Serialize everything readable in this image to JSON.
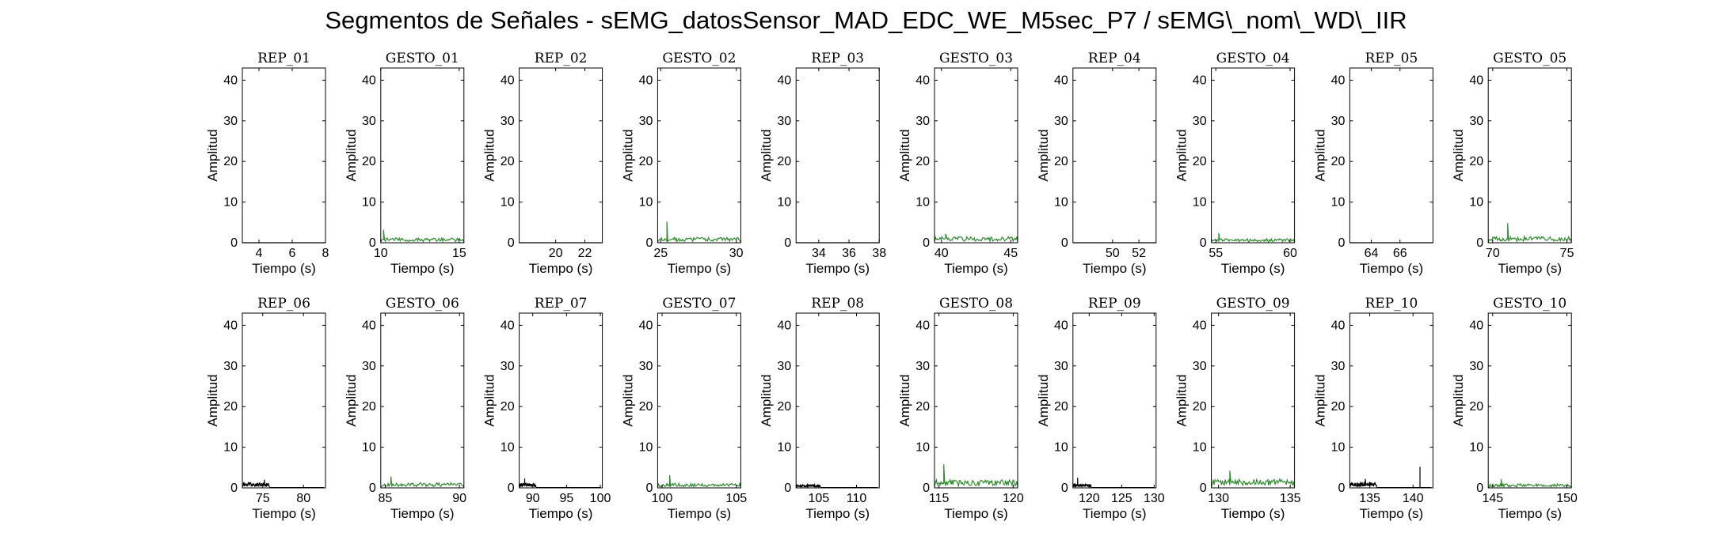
{
  "title": "Segmentos de Señales - sEMG_datosSensor_MAD_EDC_WE_M5sec_P7 / sEMG\\_nom\\_WD\\_IIR",
  "colors": {
    "rep": "#000000",
    "gesto": "#2e8b2e"
  },
  "chart_data": [
    {
      "type": "line",
      "title": "REP_01",
      "xlabel": "Tiempo (s)",
      "ylabel": "Amplitud",
      "xlim": [
        3,
        8
      ],
      "ylim": [
        0,
        43
      ],
      "xticks": [
        4,
        6,
        8
      ],
      "yticks": [
        0,
        10,
        20,
        30,
        40
      ],
      "series": [
        {
          "color": "#000000",
          "x": [
            3,
            8
          ],
          "y": [
            0,
            0
          ]
        }
      ]
    },
    {
      "type": "line",
      "title": "GESTO_01",
      "xlabel": "Tiempo (s)",
      "ylabel": "Amplitud",
      "xlim": [
        10,
        15.3
      ],
      "ylim": [
        0,
        43
      ],
      "xticks": [
        10,
        15
      ],
      "yticks": [
        0,
        10,
        20,
        30,
        40
      ],
      "series": [
        {
          "color": "#2e8b2e",
          "x": [
            10,
            15.3
          ],
          "amp": 1.2,
          "peak": [
            10.2,
            3.2
          ]
        }
      ]
    },
    {
      "type": "line",
      "title": "REP_02",
      "xlabel": "Tiempo (s)",
      "ylabel": "Amplitud",
      "xlim": [
        17.5,
        23.2
      ],
      "ylim": [
        0,
        43
      ],
      "xticks": [
        20,
        22
      ],
      "yticks": [
        0,
        10,
        20,
        30,
        40
      ],
      "series": [
        {
          "color": "#000000",
          "x": [
            17.5,
            23.2
          ],
          "y": [
            0,
            0
          ]
        }
      ]
    },
    {
      "type": "line",
      "title": "GESTO_02",
      "xlabel": "Tiempo (s)",
      "ylabel": "Amplitud",
      "xlim": [
        24.8,
        30.3
      ],
      "ylim": [
        0,
        43
      ],
      "xticks": [
        25,
        30
      ],
      "yticks": [
        0,
        10,
        20,
        30,
        40
      ],
      "series": [
        {
          "color": "#2e8b2e",
          "x": [
            24.8,
            30.3
          ],
          "amp": 1.3,
          "peak": [
            25.4,
            5.2
          ]
        }
      ]
    },
    {
      "type": "line",
      "title": "REP_03",
      "xlabel": "Tiempo (s)",
      "ylabel": "Amplitud",
      "xlim": [
        32.5,
        38
      ],
      "ylim": [
        0,
        43
      ],
      "xticks": [
        34,
        36,
        38
      ],
      "yticks": [
        0,
        10,
        20,
        30,
        40
      ],
      "series": [
        {
          "color": "#000000",
          "x": [
            32.5,
            38
          ],
          "y": [
            0,
            0
          ]
        }
      ]
    },
    {
      "type": "line",
      "title": "GESTO_03",
      "xlabel": "Tiempo (s)",
      "ylabel": "Amplitud",
      "xlim": [
        39.5,
        45.5
      ],
      "ylim": [
        0,
        43
      ],
      "xticks": [
        40,
        45
      ],
      "yticks": [
        0,
        10,
        20,
        30,
        40
      ],
      "series": [
        {
          "color": "#2e8b2e",
          "x": [
            39.5,
            45.5
          ],
          "amp": 1.5,
          "peak": [
            40.3,
            2.2
          ]
        }
      ]
    },
    {
      "type": "line",
      "title": "REP_04",
      "xlabel": "Tiempo (s)",
      "ylabel": "Amplitud",
      "xlim": [
        47,
        53.3
      ],
      "ylim": [
        0,
        43
      ],
      "xticks": [
        50,
        52
      ],
      "yticks": [
        0,
        10,
        20,
        30,
        40
      ],
      "series": [
        {
          "color": "#000000",
          "x": [
            47,
            53.3
          ],
          "y": [
            0,
            0
          ]
        }
      ]
    },
    {
      "type": "line",
      "title": "GESTO_04",
      "xlabel": "Tiempo (s)",
      "ylabel": "Amplitud",
      "xlim": [
        54.7,
        60.3
      ],
      "ylim": [
        0,
        43
      ],
      "xticks": [
        55,
        60
      ],
      "yticks": [
        0,
        10,
        20,
        30,
        40
      ],
      "series": [
        {
          "color": "#2e8b2e",
          "x": [
            54.7,
            60.3
          ],
          "amp": 1.0,
          "peak": [
            55.2,
            2.4
          ]
        }
      ]
    },
    {
      "type": "line",
      "title": "REP_05",
      "xlabel": "Tiempo (s)",
      "ylabel": "Amplitud",
      "xlim": [
        62.5,
        68.3
      ],
      "ylim": [
        0,
        43
      ],
      "xticks": [
        64,
        66
      ],
      "yticks": [
        0,
        10,
        20,
        30,
        40
      ],
      "series": [
        {
          "color": "#000000",
          "x": [
            62.5,
            68.3
          ],
          "y": [
            0,
            0
          ]
        }
      ]
    },
    {
      "type": "line",
      "title": "GESTO_05",
      "xlabel": "Tiempo (s)",
      "ylabel": "Amplitud",
      "xlim": [
        69.7,
        75.3
      ],
      "ylim": [
        0,
        43
      ],
      "xticks": [
        70,
        75
      ],
      "yticks": [
        0,
        10,
        20,
        30,
        40
      ],
      "series": [
        {
          "color": "#2e8b2e",
          "x": [
            69.7,
            75.3
          ],
          "amp": 1.5,
          "peak": [
            71.0,
            4.8
          ]
        }
      ]
    },
    {
      "type": "line",
      "title": "REP_06",
      "xlabel": "Tiempo (s)",
      "ylabel": "Amplitud",
      "xlim": [
        72.5,
        82.7
      ],
      "ylim": [
        0,
        43
      ],
      "xticks": [
        75,
        80
      ],
      "yticks": [
        0,
        10,
        20,
        30,
        40
      ],
      "series": [
        {
          "color": "#000000",
          "x": [
            72.5,
            75.8
          ],
          "amp": 1.3,
          "peak": [
            75.2,
            2.0
          ]
        }
      ]
    },
    {
      "type": "line",
      "title": "GESTO_06",
      "xlabel": "Tiempo (s)",
      "ylabel": "Amplitud",
      "xlim": [
        84.7,
        90.3
      ],
      "ylim": [
        0,
        43
      ],
      "xticks": [
        85,
        90
      ],
      "yticks": [
        0,
        10,
        20,
        30,
        40
      ],
      "series": [
        {
          "color": "#2e8b2e",
          "x": [
            84.7,
            90.3
          ],
          "amp": 1.3,
          "peak": [
            85.4,
            2.8
          ]
        }
      ]
    },
    {
      "type": "line",
      "title": "REP_07",
      "xlabel": "Tiempo (s)",
      "ylabel": "Amplitud",
      "xlim": [
        88,
        100.3
      ],
      "ylim": [
        0,
        43
      ],
      "xticks": [
        90,
        95,
        100
      ],
      "yticks": [
        0,
        10,
        20,
        30,
        40
      ],
      "series": [
        {
          "color": "#000000",
          "x": [
            88,
            90.5
          ],
          "amp": 1.1,
          "peak": [
            88.8,
            2.3
          ]
        }
      ]
    },
    {
      "type": "line",
      "title": "GESTO_07",
      "xlabel": "Tiempo (s)",
      "ylabel": "Amplitud",
      "xlim": [
        99.7,
        105.3
      ],
      "ylim": [
        0,
        43
      ],
      "xticks": [
        100,
        105
      ],
      "yticks": [
        0,
        10,
        20,
        30,
        40
      ],
      "series": [
        {
          "color": "#2e8b2e",
          "x": [
            99.7,
            105.3
          ],
          "amp": 1.1,
          "peak": [
            100.5,
            3.1
          ]
        }
      ]
    },
    {
      "type": "line",
      "title": "REP_08",
      "xlabel": "Tiempo (s)",
      "ylabel": "Amplitud",
      "xlim": [
        102,
        113
      ],
      "ylim": [
        0,
        43
      ],
      "xticks": [
        105,
        110
      ],
      "yticks": [
        0,
        10,
        20,
        30,
        40
      ],
      "series": [
        {
          "color": "#000000",
          "x": [
            102,
            105.2
          ],
          "amp": 0.8,
          "peak": [
            102.8,
            1.5
          ]
        }
      ]
    },
    {
      "type": "line",
      "title": "GESTO_08",
      "xlabel": "Tiempo (s)",
      "ylabel": "Amplitud",
      "xlim": [
        114.7,
        120.3
      ],
      "ylim": [
        0,
        43
      ],
      "xticks": [
        115,
        120
      ],
      "yticks": [
        0,
        10,
        20,
        30,
        40
      ],
      "series": [
        {
          "color": "#2e8b2e",
          "x": [
            114.7,
            120.3
          ],
          "amp": 2.0,
          "peak": [
            115.3,
            5.8
          ]
        }
      ]
    },
    {
      "type": "line",
      "title": "REP_09",
      "xlabel": "Tiempo (s)",
      "ylabel": "Amplitud",
      "xlim": [
        117.5,
        130.3
      ],
      "ylim": [
        0,
        43
      ],
      "xticks": [
        120,
        125,
        130
      ],
      "yticks": [
        0,
        10,
        20,
        30,
        40
      ],
      "series": [
        {
          "color": "#000000",
          "x": [
            117.5,
            120.3
          ],
          "amp": 1.0,
          "peak": [
            118.2,
            2.5
          ]
        }
      ]
    },
    {
      "type": "line",
      "title": "GESTO_09",
      "xlabel": "Tiempo (s)",
      "ylabel": "Amplitud",
      "xlim": [
        129.5,
        135.3
      ],
      "ylim": [
        0,
        43
      ],
      "xticks": [
        130,
        135
      ],
      "yticks": [
        0,
        10,
        20,
        30,
        40
      ],
      "series": [
        {
          "color": "#2e8b2e",
          "x": [
            129.5,
            135.3
          ],
          "amp": 2.2,
          "peak": [
            130.8,
            4.2
          ]
        }
      ]
    },
    {
      "type": "line",
      "title": "REP_10",
      "xlabel": "Tiempo (s)",
      "ylabel": "Amplitud",
      "xlim": [
        132.7,
        142.3
      ],
      "ylim": [
        0,
        43
      ],
      "xticks": [
        135,
        140
      ],
      "yticks": [
        0,
        10,
        20,
        30,
        40
      ],
      "series": [
        {
          "color": "#000000",
          "x": [
            132.7,
            135.8
          ],
          "amp": 1.3,
          "peak": [
            134.5,
            2.2
          ],
          "spike": [
            140.8,
            5.2
          ]
        }
      ]
    },
    {
      "type": "line",
      "title": "GESTO_10",
      "xlabel": "Tiempo (s)",
      "ylabel": "Amplitud",
      "xlim": [
        144.7,
        150.3
      ],
      "ylim": [
        0,
        43
      ],
      "xticks": [
        145,
        150
      ],
      "yticks": [
        0,
        10,
        20,
        30,
        40
      ],
      "series": [
        {
          "color": "#2e8b2e",
          "x": [
            144.7,
            150.3
          ],
          "amp": 1.0,
          "peak": [
            145.6,
            2.2
          ]
        }
      ]
    }
  ]
}
